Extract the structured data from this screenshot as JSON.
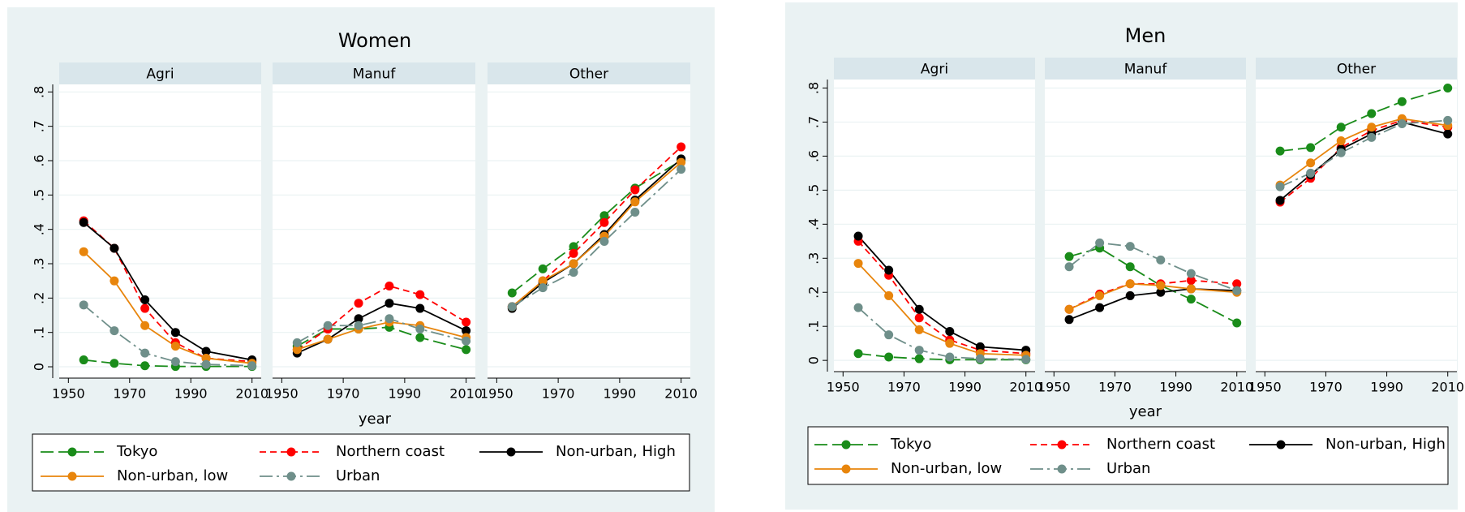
{
  "chart_data": [
    {
      "type": "line",
      "title": "Women",
      "xlabel": "year",
      "x": [
        1955,
        1965,
        1975,
        1985,
        1995,
        2010
      ],
      "xlim": [
        1947,
        2013
      ],
      "xticks": [
        1950,
        1970,
        1990,
        2010
      ],
      "ylim": [
        -0.033,
        0.822
      ],
      "yticks": [
        0,
        {
          "value": 0.1,
          "label": ".1"
        },
        {
          "value": 0.2,
          "label": ".2"
        },
        {
          "value": 0.3,
          "label": ".3"
        },
        {
          "value": 0.4,
          "label": ".4"
        },
        {
          "value": 0.5,
          "label": ".5"
        },
        {
          "value": 0.6,
          "label": ".6"
        },
        {
          "value": 0.7,
          "label": ".7"
        },
        {
          "value": 0.8,
          "label": ".8"
        }
      ],
      "grid": true,
      "series": [
        {
          "name": "Tokyo",
          "color": "#1a8c1a",
          "dash": "longdash"
        },
        {
          "name": "Northern coast",
          "color": "#ff0000",
          "dash": "dash"
        },
        {
          "name": "Non-urban, High",
          "color": "#000000",
          "dash": "solid"
        },
        {
          "name": "Non-urban, low",
          "color": "#e8850c",
          "dash": "solid"
        },
        {
          "name": "Urban",
          "color": "#6f8f8a",
          "dash": "dashdot"
        }
      ],
      "panels": [
        {
          "title": "Agri",
          "series": [
            {
              "values": [
                0.02,
                0.01,
                0.003,
                0.001,
                0.001,
                0.001
              ]
            },
            {
              "values": [
                0.425,
                0.345,
                0.17,
                0.07,
                0.025,
                0.015
              ]
            },
            {
              "values": [
                0.42,
                0.345,
                0.195,
                0.1,
                0.045,
                0.02
              ]
            },
            {
              "values": [
                0.335,
                0.25,
                0.12,
                0.06,
                0.025,
                0.01
              ]
            },
            {
              "values": [
                0.18,
                0.105,
                0.04,
                0.015,
                0.007,
                0.003
              ]
            }
          ]
        },
        {
          "title": "Manuf",
          "series": [
            {
              "values": [
                0.06,
                0.11,
                0.11,
                0.115,
                0.085,
                0.05
              ]
            },
            {
              "values": [
                0.05,
                0.11,
                0.185,
                0.235,
                0.21,
                0.13
              ]
            },
            {
              "values": [
                0.04,
                0.08,
                0.14,
                0.185,
                0.17,
                0.105
              ]
            },
            {
              "values": [
                0.05,
                0.08,
                0.11,
                0.13,
                0.12,
                0.085
              ]
            },
            {
              "values": [
                0.07,
                0.12,
                0.12,
                0.14,
                0.11,
                0.075
              ]
            }
          ]
        },
        {
          "title": "Other",
          "series": [
            {
              "values": [
                0.215,
                0.285,
                0.35,
                0.44,
                0.52,
                0.6
              ]
            },
            {
              "values": [
                0.175,
                0.25,
                0.33,
                0.42,
                0.515,
                0.64
              ]
            },
            {
              "values": [
                0.17,
                0.245,
                0.3,
                0.385,
                0.485,
                0.605
              ]
            },
            {
              "values": [
                0.175,
                0.25,
                0.3,
                0.38,
                0.48,
                0.595
              ]
            },
            {
              "values": [
                0.175,
                0.23,
                0.275,
                0.365,
                0.45,
                0.575
              ]
            }
          ]
        }
      ]
    },
    {
      "type": "line",
      "title": "Men",
      "xlabel": "year",
      "x": [
        1955,
        1965,
        1975,
        1985,
        1995,
        2010
      ],
      "xlim": [
        1947,
        2013
      ],
      "xticks": [
        1950,
        1970,
        1990,
        2010
      ],
      "ylim": [
        -0.033,
        0.825
      ],
      "yticks": [
        0,
        {
          "value": 0.1,
          "label": ".1"
        },
        {
          "value": 0.2,
          "label": ".2"
        },
        {
          "value": 0.3,
          "label": ".3"
        },
        {
          "value": 0.4,
          "label": ".4"
        },
        {
          "value": 0.5,
          "label": ".5"
        },
        {
          "value": 0.6,
          "label": ".6"
        },
        {
          "value": 0.7,
          "label": ".7"
        },
        {
          "value": 0.8,
          "label": ".8"
        }
      ],
      "grid": true,
      "series": [
        {
          "name": "Tokyo",
          "color": "#1a8c1a",
          "dash": "longdash"
        },
        {
          "name": "Northern coast",
          "color": "#ff0000",
          "dash": "dash"
        },
        {
          "name": "Non-urban, High",
          "color": "#000000",
          "dash": "solid"
        },
        {
          "name": "Non-urban, low",
          "color": "#e8850c",
          "dash": "solid"
        },
        {
          "name": "Urban",
          "color": "#6f8f8a",
          "dash": "dashdot"
        }
      ],
      "panels": [
        {
          "title": "Agri",
          "series": [
            {
              "values": [
                0.02,
                0.01,
                0.005,
                0.002,
                0.002,
                0.002
              ]
            },
            {
              "values": [
                0.35,
                0.25,
                0.125,
                0.06,
                0.03,
                0.02
              ]
            },
            {
              "values": [
                0.365,
                0.265,
                0.15,
                0.085,
                0.04,
                0.03
              ]
            },
            {
              "values": [
                0.285,
                0.19,
                0.09,
                0.05,
                0.02,
                0.015
              ]
            },
            {
              "values": [
                0.155,
                0.075,
                0.03,
                0.01,
                0.005,
                0.003
              ]
            }
          ]
        },
        {
          "title": "Manuf",
          "series": [
            {
              "values": [
                0.305,
                0.33,
                0.275,
                0.22,
                0.18,
                0.11
              ]
            },
            {
              "values": [
                0.15,
                0.195,
                0.225,
                0.225,
                0.235,
                0.225
              ]
            },
            {
              "values": [
                0.12,
                0.155,
                0.19,
                0.2,
                0.21,
                0.205
              ]
            },
            {
              "values": [
                0.15,
                0.19,
                0.225,
                0.22,
                0.21,
                0.2
              ]
            },
            {
              "values": [
                0.275,
                0.345,
                0.335,
                0.295,
                0.255,
                0.205
              ]
            }
          ]
        },
        {
          "title": "Other",
          "series": [
            {
              "values": [
                0.615,
                0.625,
                0.685,
                0.725,
                0.76,
                0.8
              ]
            },
            {
              "values": [
                0.465,
                0.535,
                0.625,
                0.675,
                0.705,
                0.685
              ]
            },
            {
              "values": [
                0.47,
                0.545,
                0.62,
                0.665,
                0.7,
                0.665
              ]
            },
            {
              "values": [
                0.515,
                0.58,
                0.645,
                0.685,
                0.71,
                0.69
              ]
            },
            {
              "values": [
                0.51,
                0.55,
                0.61,
                0.655,
                0.695,
                0.705
              ]
            }
          ]
        }
      ]
    }
  ]
}
